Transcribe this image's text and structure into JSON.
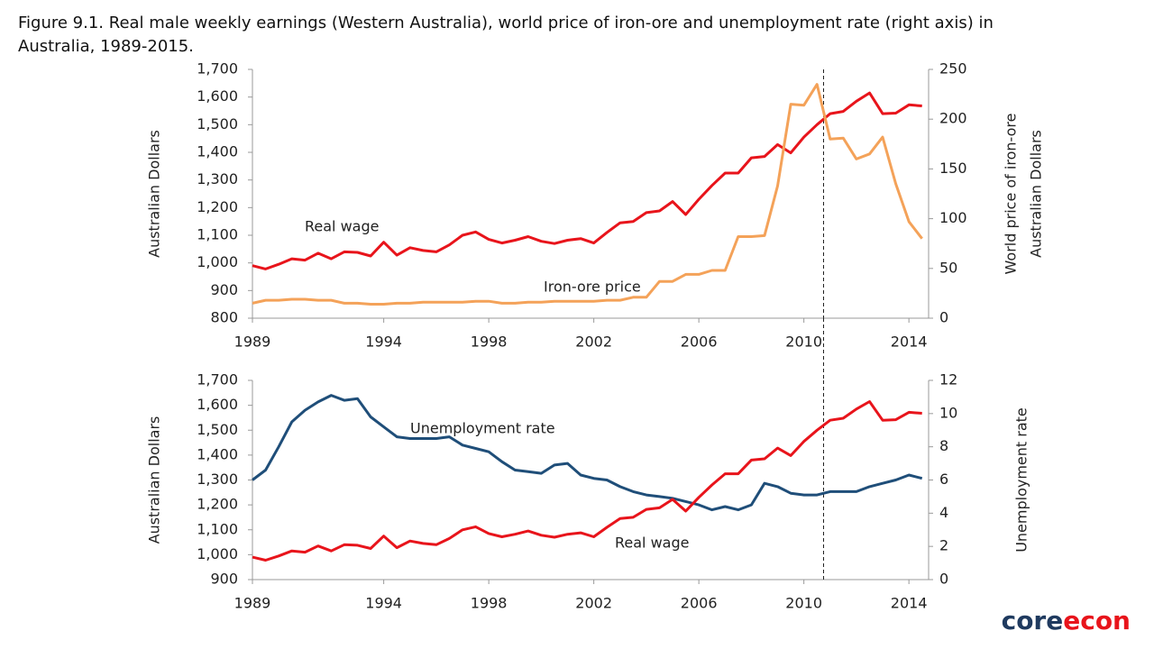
{
  "title": "Figure 9.1. Real male weekly earnings (Western Australia), world price of iron-ore and unemployment rate (right axis) in Australia, 1989-2015.",
  "logo": [
    "core",
    "econ"
  ],
  "chart_data": [
    {
      "type": "line",
      "x": [
        1989,
        1989.5,
        1990,
        1990.5,
        1991,
        1991.5,
        1992,
        1992.5,
        1993,
        1993.5,
        1994,
        1994.5,
        1995,
        1995.5,
        1996,
        1996.5,
        1997,
        1997.5,
        1998,
        1998.5,
        1999,
        1999.5,
        2000,
        2000.5,
        2001,
        2001.5,
        2002,
        2002.5,
        2003,
        2003.5,
        2004,
        2004.5,
        2005,
        2005.5,
        2006,
        2006.5,
        2007,
        2007.5,
        2008,
        2008.5,
        2009,
        2009.5,
        2010,
        2010.5,
        2011,
        2011.5,
        2012,
        2012.5,
        2013,
        2013.5,
        2014,
        2014.5
      ],
      "xlim": [
        1989,
        2014.75
      ],
      "xticks": [
        1989,
        1994,
        1998,
        2002,
        2006,
        2010,
        2014
      ],
      "ylim": [
        800,
        1700
      ],
      "yticks": [
        800,
        900,
        {
          "value": 1000,
          "label": "1,000"
        },
        {
          "value": 1100,
          "label": "1,100"
        },
        {
          "value": 1200,
          "label": "1,200"
        },
        {
          "value": 1300,
          "label": "1,300"
        },
        {
          "value": 1400,
          "label": "1,400"
        },
        {
          "value": 1500,
          "label": "1,500"
        },
        {
          "value": 1600,
          "label": "1,600"
        },
        {
          "value": 1700,
          "label": "1,700"
        }
      ],
      "y2lim": [
        0,
        250
      ],
      "y2ticks": [
        0,
        50,
        100,
        150,
        200,
        250
      ],
      "ylabel": "Australian Dollars",
      "y2label": [
        "World  price of iron-ore",
        "Australian Dollars"
      ],
      "vline": 2010.75,
      "series": [
        {
          "name": "Real wage",
          "color": "#e8141b",
          "values": [
            990,
            978,
            995,
            1015,
            1010,
            1035,
            1015,
            1040,
            1038,
            1025,
            1075,
            1028,
            1055,
            1045,
            1040,
            1065,
            1100,
            1112,
            1085,
            1072,
            1082,
            1095,
            1078,
            1070,
            1082,
            1088,
            1072,
            1110,
            1145,
            1150,
            1182,
            1188,
            1222,
            1175,
            1230,
            1280,
            1325,
            1325,
            1380,
            1385,
            1428,
            1398,
            1455,
            1500,
            1540,
            1548,
            1585,
            1615,
            1540,
            1542,
            1572,
            1568
          ]
        },
        {
          "name": "Iron-ore price",
          "color": "#f4a259",
          "axis": "y2",
          "values": [
            15,
            18,
            18,
            19,
            19,
            18,
            18,
            15,
            15,
            14,
            14,
            15,
            15,
            16,
            16,
            16,
            16,
            17,
            17,
            15,
            15,
            16,
            16,
            17,
            17,
            17,
            17,
            18,
            18,
            21,
            21,
            37,
            37,
            44,
            44,
            48,
            48,
            82,
            82,
            83,
            133,
            215,
            214,
            235,
            180,
            181,
            160,
            165,
            182,
            135,
            97,
            80
          ]
        }
      ]
    },
    {
      "type": "line",
      "x": [
        1989,
        1989.5,
        1990,
        1990.5,
        1991,
        1991.5,
        1992,
        1992.5,
        1993,
        1993.5,
        1994,
        1994.5,
        1995,
        1995.5,
        1996,
        1996.5,
        1997,
        1997.5,
        1998,
        1998.5,
        1999,
        1999.5,
        2000,
        2000.5,
        2001,
        2001.5,
        2002,
        2002.5,
        2003,
        2003.5,
        2004,
        2004.5,
        2005,
        2005.5,
        2006,
        2006.5,
        2007,
        2007.5,
        2008,
        2008.5,
        2009,
        2009.5,
        2010,
        2010.5,
        2011,
        2011.5,
        2012,
        2012.5,
        2013,
        2013.5,
        2014,
        2014.5
      ],
      "xlim": [
        1989,
        2014.75
      ],
      "xticks": [
        1989,
        1994,
        1998,
        2002,
        2006,
        2010,
        2014
      ],
      "ylim": [
        900,
        1700
      ],
      "yticks": [
        900,
        {
          "value": 1000,
          "label": "1,000"
        },
        {
          "value": 1100,
          "label": "1,100"
        },
        {
          "value": 1200,
          "label": "1,200"
        },
        {
          "value": 1300,
          "label": "1,300"
        },
        {
          "value": 1400,
          "label": "1,400"
        },
        {
          "value": 1500,
          "label": "1,500"
        },
        {
          "value": 1600,
          "label": "1,600"
        },
        {
          "value": 1700,
          "label": "1,700"
        }
      ],
      "y2lim": [
        0,
        12
      ],
      "y2ticks": [
        0,
        2,
        4,
        6,
        8,
        10,
        12
      ],
      "ylabel": "Australian Dollars",
      "y2label": [
        "Unemployment  rate"
      ],
      "vline": 2010.75,
      "series": [
        {
          "name": "Unemployment rate",
          "color": "#1f4e79",
          "axis": "y2",
          "values": [
            6.0,
            6.6,
            8.0,
            9.5,
            10.2,
            10.7,
            11.1,
            10.8,
            10.9,
            9.8,
            9.2,
            8.6,
            8.5,
            8.5,
            8.5,
            8.6,
            8.1,
            7.9,
            7.7,
            7.1,
            6.6,
            6.5,
            6.4,
            6.9,
            7.0,
            6.3,
            6.1,
            6.0,
            5.6,
            5.3,
            5.1,
            5.0,
            4.9,
            4.7,
            4.5,
            4.2,
            4.4,
            4.2,
            4.5,
            5.8,
            5.6,
            5.2,
            5.1,
            5.1,
            5.3,
            5.3,
            5.3,
            5.6,
            5.8,
            6.0,
            6.3,
            6.1
          ]
        },
        {
          "name": "Real wage",
          "color": "#e8141b",
          "values": [
            990,
            978,
            995,
            1015,
            1010,
            1035,
            1015,
            1040,
            1038,
            1025,
            1075,
            1028,
            1055,
            1045,
            1040,
            1065,
            1100,
            1112,
            1085,
            1072,
            1082,
            1095,
            1078,
            1070,
            1082,
            1088,
            1072,
            1110,
            1145,
            1150,
            1182,
            1188,
            1222,
            1175,
            1230,
            1280,
            1325,
            1325,
            1380,
            1385,
            1428,
            1398,
            1455,
            1500,
            1540,
            1548,
            1585,
            1615,
            1540,
            1542,
            1572,
            1568
          ]
        }
      ]
    }
  ]
}
